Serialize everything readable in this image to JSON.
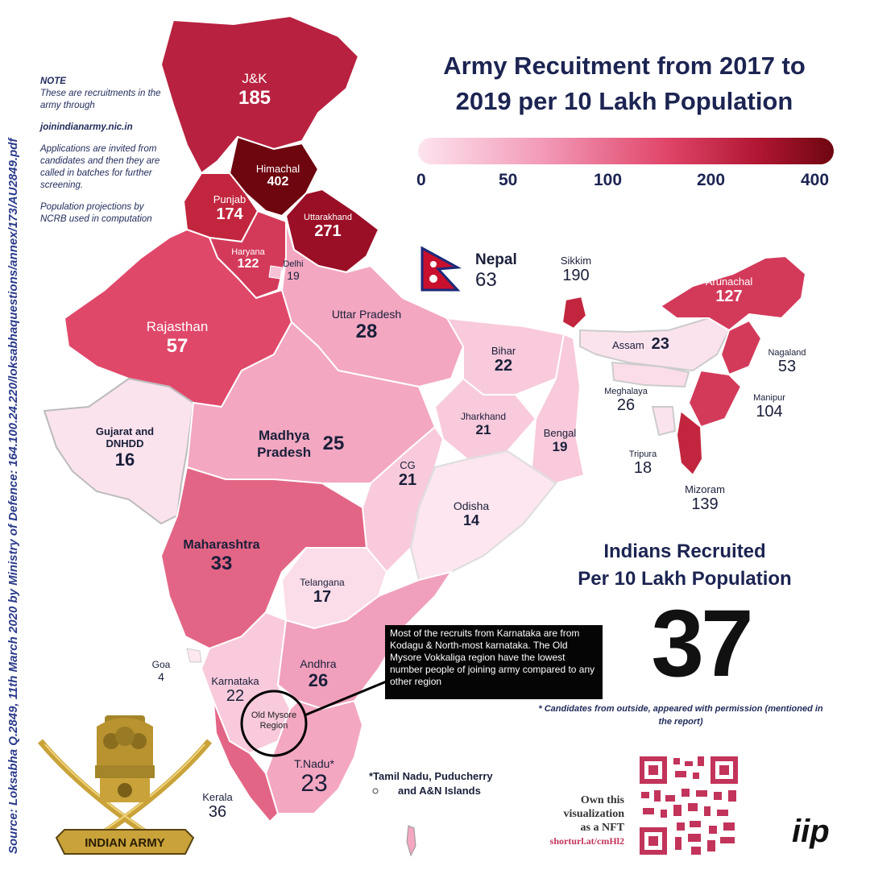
{
  "source_text": "Source: Loksabha Q.2849, 11th March 2020 by Ministry of Defence: 164.100.24.220/loksabhaquestions/annex/173/AU2849.pdf",
  "note": {
    "heading": "NOTE",
    "line1": "These are recruitments in the army through",
    "link": "joinindianarmy.nic.in",
    "line2": "Applications are invited from candidates and then they are called in batches for further screening.",
    "line3": "Population projections by NCRB used in computation"
  },
  "title_line1": "Army Recuitment from 2017 to",
  "title_line2": "2019 per 10 Lakh Population",
  "legend": {
    "ticks": [
      "0",
      "50",
      "100",
      "200",
      "400"
    ],
    "colors": [
      "#fde4ee",
      "#f29ab8",
      "#e04569",
      "#b01632",
      "#6e0610"
    ]
  },
  "regions": {
    "jk": {
      "name": "J&K",
      "value": "185"
    },
    "himachal": {
      "name": "Himachal",
      "value": "402"
    },
    "punjab": {
      "name": "Punjab",
      "value": "174"
    },
    "uttarakhand": {
      "name": "Uttarakhand",
      "value": "271"
    },
    "haryana": {
      "name": "Haryana",
      "value": "122"
    },
    "delhi": {
      "name": "Delhi",
      "value": "19"
    },
    "rajasthan": {
      "name": "Rajasthan",
      "value": "57"
    },
    "up": {
      "name": "Uttar Pradesh",
      "value": "28"
    },
    "nepal": {
      "name": "Nepal",
      "value": "63"
    },
    "sikkim": {
      "name": "Sikkim",
      "value": "190"
    },
    "arunachal": {
      "name": "Arunachal",
      "value": "127"
    },
    "assam": {
      "name": "Assam",
      "value": "23"
    },
    "nagaland": {
      "name": "Nagaland",
      "value": "53"
    },
    "meghalaya": {
      "name": "Meghalaya",
      "value": "26"
    },
    "manipur": {
      "name": "Manipur",
      "value": "104"
    },
    "tripura": {
      "name": "Tripura",
      "value": "18"
    },
    "mizoram": {
      "name": "Mizoram",
      "value": "139"
    },
    "bihar": {
      "name": "Bihar",
      "value": "22"
    },
    "jharkhand": {
      "name": "Jharkhand",
      "value": "21"
    },
    "bengal": {
      "name": "Bengal",
      "value": "19"
    },
    "gujarat": {
      "name": "Gujarat and DNHDD",
      "value": "16"
    },
    "mp": {
      "name": "Madhya Pradesh",
      "value": "25"
    },
    "cg": {
      "name": "CG",
      "value": "21"
    },
    "odisha": {
      "name": "Odisha",
      "value": "14"
    },
    "maharashtra": {
      "name": "Maharashtra",
      "value": "33"
    },
    "telangana": {
      "name": "Telangana",
      "value": "17"
    },
    "goa": {
      "name": "Goa",
      "value": "4"
    },
    "karnataka": {
      "name": "Karnataka",
      "value": "22"
    },
    "andhra": {
      "name": "Andhra",
      "value": "26"
    },
    "tnadu": {
      "name": "T.Nadu*",
      "value": "23"
    },
    "kerala": {
      "name": "Kerala",
      "value": "36"
    }
  },
  "total_title_line1": "Indians Recruited",
  "total_title_line2": "Per 10 Lakh Population",
  "total_value": "37",
  "footnote": "* Candidates from outside, appeared with permission (mentioned in the report)",
  "callout": "Most of the recruits from Karnataka are from Kodagu & North-most karnataka. The Old Mysore Vokkaliga region have the lowest number people of joining army compared to any other region",
  "circle_label": "Old Mysore Region",
  "tn_note_line1": "*Tamil Nadu, Puducherry",
  "tn_note_line2": "and A&N Islands",
  "nft": {
    "line1": "Own this",
    "line2": "visualization",
    "line3": "as a NFT",
    "url": "shorturl.at/cmHl2"
  },
  "brand": "iip",
  "emblem_text": "INDIAN ARMY"
}
